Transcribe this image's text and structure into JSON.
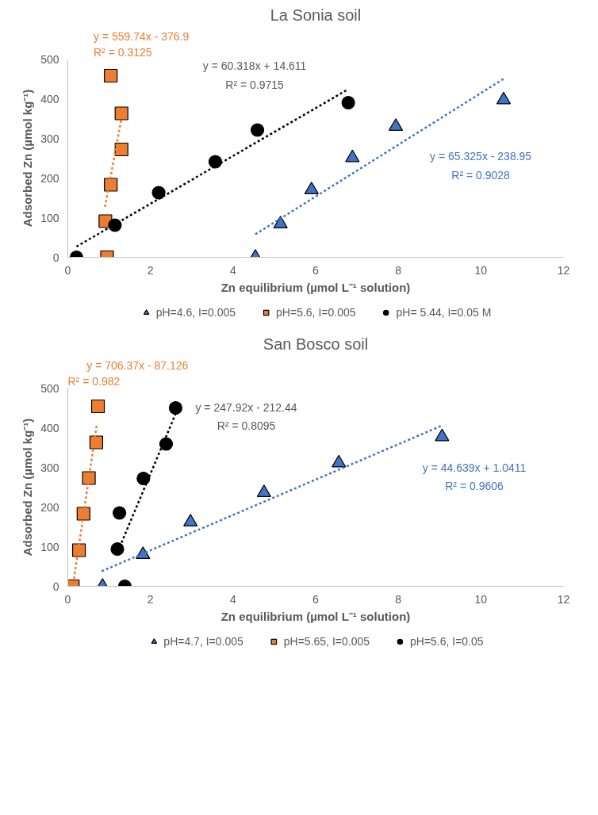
{
  "chart_data": [
    {
      "type": "scatter",
      "title": "La Sonia soil",
      "xlabel": "Zn equilibrium (µmol L⁻¹ solution)",
      "ylabel": "Adsorbed Zn (µmol kg⁻¹)",
      "xlim": [
        0,
        12
      ],
      "xticks": [
        0,
        2,
        4,
        6,
        8,
        10,
        12
      ],
      "ylim": [
        0,
        500
      ],
      "yticks": [
        0,
        100,
        200,
        300,
        400,
        500
      ],
      "grid": false,
      "legend": "bottom",
      "series": [
        {
          "name": "pH=4.6, I=0.005",
          "color": "#4472c4",
          "marker": "triangle",
          "x": [
            4.54,
            5.15,
            5.9,
            6.89,
            7.94,
            10.55
          ],
          "values": [
            0,
            84,
            170,
            251,
            330,
            397
          ]
        },
        {
          "name": "pH=5.6, I=0.005",
          "color": "#ed7d31",
          "marker": "square",
          "x": [
            1.04,
            1.3,
            1.3,
            1.04,
            0.91,
            0.95
          ],
          "values": [
            458,
            363,
            272,
            183,
            91,
            0
          ]
        },
        {
          "name": "pH= 5.44, I=0.05 M",
          "color": "#000000",
          "marker": "circle",
          "x": [
            0.21,
            1.14,
            2.2,
            3.57,
            4.59,
            6.79
          ],
          "values": [
            0,
            81,
            163,
            241,
            321,
            390
          ]
        },
        {
          "type": "line",
          "color": "#ed7d31",
          "marker": "none",
          "line_style": "dotted",
          "x": [
            0.9,
            1.3
          ],
          "values": [
            127,
            351
          ]
        },
        {
          "type": "line",
          "color": "#000000",
          "marker": "none",
          "line_style": "dotted",
          "x": [
            0.21,
            6.79
          ],
          "values": [
            27,
            424
          ]
        },
        {
          "type": "line",
          "color": "#4472c4",
          "marker": "none",
          "line_style": "dotted",
          "x": [
            4.54,
            10.55
          ],
          "values": [
            58,
            450
          ]
        }
      ],
      "annotations": [
        "y = 559.74x - 376.9",
        "R² = 0.3125",
        "y = 60.318x + 14.611",
        "R² = 0.9715",
        "y = 65.325x - 238.95",
        "R² = 0.9028"
      ]
    },
    {
      "type": "scatter",
      "title": "San Bosco soil",
      "xlabel": "Zn equilibrium (µmol L⁻¹ solution)",
      "ylabel": "Adsorbed Zn (µmol kg⁻¹)",
      "xlim": [
        0,
        12
      ],
      "xticks": [
        0,
        2,
        4,
        6,
        8,
        10,
        12
      ],
      "ylim": [
        0,
        500
      ],
      "yticks": [
        0,
        100,
        200,
        300,
        400,
        500
      ],
      "grid": false,
      "legend": "bottom",
      "series": [
        {
          "name": "pH=4.7, I=0.005",
          "color": "#4472c4",
          "marker": "triangle",
          "x": [
            0.84,
            1.82,
            2.97,
            4.75,
            6.56,
            9.06
          ],
          "values": [
            0,
            80,
            162,
            236,
            311,
            377
          ]
        },
        {
          "name": "pH=5.65, I=0.005",
          "color": "#ed7d31",
          "marker": "square",
          "x": [
            0.12,
            0.27,
            0.38,
            0.51,
            0.69,
            0.73
          ],
          "values": [
            0,
            91,
            183,
            273,
            363,
            454
          ]
        },
        {
          "name": "pH=5.6, I=0.05",
          "color": "#000000",
          "marker": "circle",
          "x": [
            1.38,
            1.2,
            1.25,
            1.83,
            2.38,
            2.61
          ],
          "values": [
            0,
            94,
            185,
            272,
            359,
            450
          ]
        },
        {
          "type": "line",
          "color": "#ed7d31",
          "marker": "none",
          "line_style": "dotted",
          "x": [
            0.15,
            0.7
          ],
          "values": [
            19,
            407
          ]
        },
        {
          "type": "line",
          "color": "#000000",
          "marker": "none",
          "line_style": "dotted",
          "x": [
            1.3,
            2.61
          ],
          "values": [
            110,
            435
          ]
        },
        {
          "type": "line",
          "color": "#4472c4",
          "marker": "none",
          "line_style": "dotted",
          "x": [
            0.82,
            9.07
          ],
          "values": [
            38,
            406
          ]
        }
      ],
      "annotations": [
        "y = 706.37x - 87.126",
        "R² = 0.982",
        "y = 247.92x - 212.44",
        "R² = 0.8095",
        "y = 44.639x + 1.0411",
        "R² = 0.9606"
      ]
    }
  ]
}
